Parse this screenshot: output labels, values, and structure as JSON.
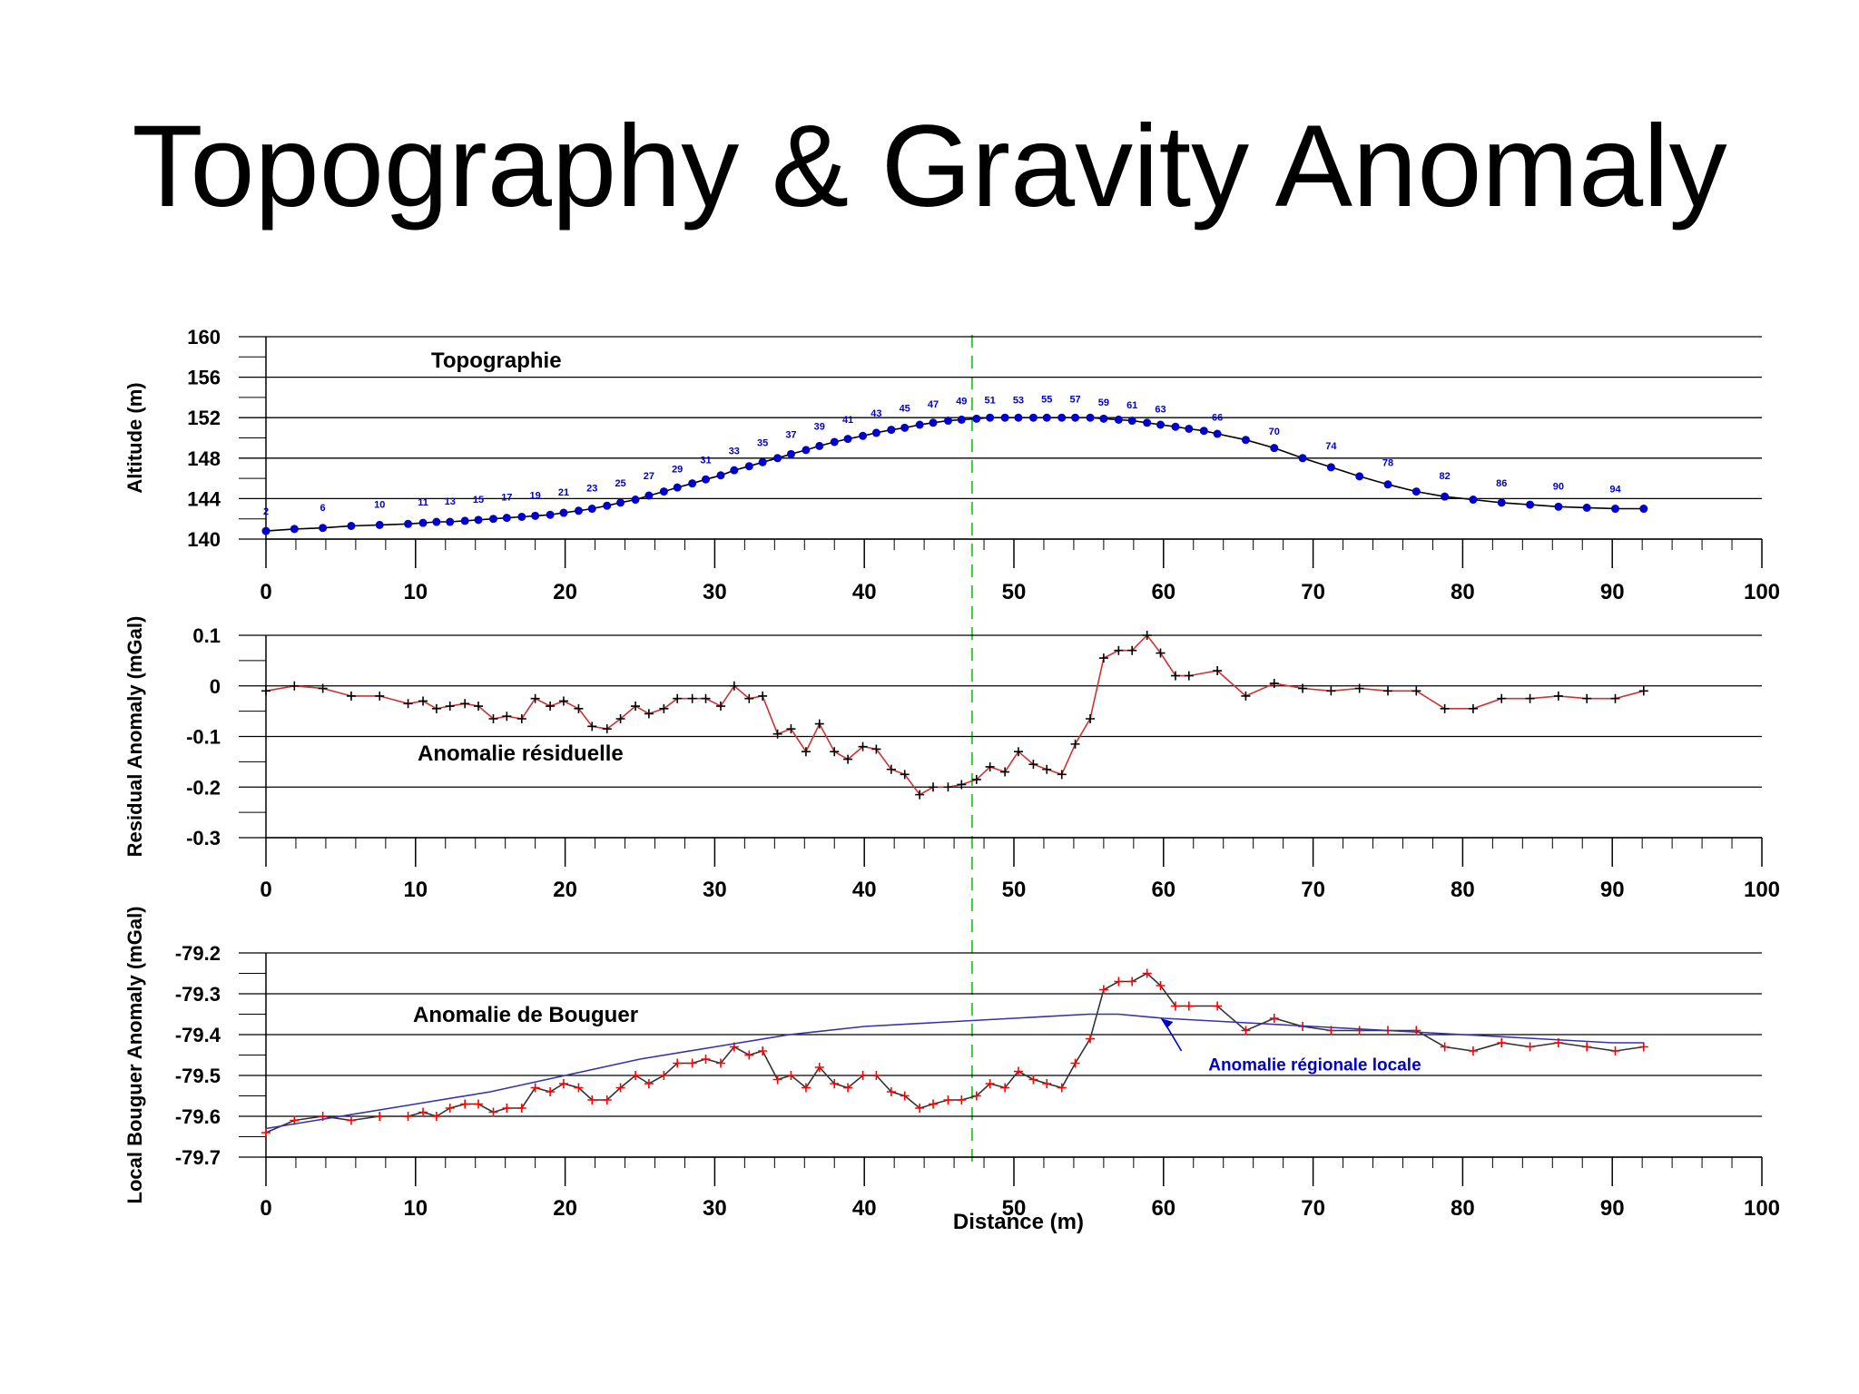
{
  "slide": {
    "title": "Topography & Gravity Anomaly"
  },
  "colors": {
    "topo_line": "#000000",
    "topo_marker": "#0000cc",
    "topo_label": "#0000cc",
    "residual_line": "#cc3333",
    "residual_marker": "#000000",
    "bouguer_line": "#333333",
    "bouguer_marker": "#ff0000",
    "regional_line": "#3333aa",
    "regional_label": "#0000cc",
    "reference_line": "#33cc33",
    "grid": "#000000"
  },
  "reference_line_x": 47.2,
  "chart_data": [
    {
      "type": "line",
      "title": "Topographie",
      "ylabel": "Altitude (m)",
      "xlabel": "",
      "xlim": [
        0,
        100
      ],
      "ylim": [
        140,
        160
      ],
      "x_ticks": [
        0,
        10,
        20,
        30,
        40,
        50,
        60,
        70,
        80,
        90,
        100
      ],
      "y_ticks": [
        140,
        144,
        148,
        152,
        156,
        160
      ],
      "x_tick_labels": [
        "0",
        "10",
        "20",
        "30",
        "40",
        "50",
        "60",
        "70",
        "80",
        "90",
        "100"
      ],
      "y_tick_labels": [
        "140",
        "144",
        "148",
        "152",
        "156",
        "160"
      ],
      "grid": true,
      "series": [
        {
          "marker": "dot",
          "x": [
            0,
            1.9,
            3.8,
            5.7,
            7.6,
            9.5,
            10.5,
            11.4,
            12.3,
            13.3,
            14.2,
            15.2,
            16.1,
            17.1,
            18.0,
            19.0,
            19.9,
            20.9,
            21.8,
            22.8,
            23.7,
            24.7,
            25.6,
            26.6,
            27.5,
            28.5,
            29.4,
            30.4,
            31.3,
            32.3,
            33.2,
            34.2,
            35.1,
            36.1,
            37.0,
            38.0,
            38.9,
            39.9,
            40.8,
            41.8,
            42.7,
            43.7,
            44.6,
            45.6,
            46.5,
            47.5,
            48.4,
            49.4,
            50.3,
            51.3,
            52.2,
            53.2,
            54.1,
            55.1,
            56.0,
            57.0,
            57.9,
            58.9,
            59.8,
            60.8,
            61.7,
            62.7,
            63.6,
            65.5,
            67.4,
            69.3,
            71.2,
            73.1,
            75.0,
            76.9,
            78.8,
            80.7,
            82.6,
            84.5,
            86.4,
            88.3,
            90.2,
            92.1
          ],
          "values": [
            140.8,
            141.0,
            141.1,
            141.3,
            141.4,
            141.5,
            141.6,
            141.7,
            141.7,
            141.8,
            141.9,
            142.0,
            142.1,
            142.2,
            142.3,
            142.4,
            142.6,
            142.8,
            143.0,
            143.3,
            143.6,
            143.9,
            144.3,
            144.7,
            145.1,
            145.5,
            145.9,
            146.3,
            146.8,
            147.2,
            147.6,
            148.0,
            148.4,
            148.8,
            149.2,
            149.6,
            149.9,
            150.2,
            150.5,
            150.8,
            151.0,
            151.3,
            151.5,
            151.7,
            151.8,
            151.9,
            152.0,
            152.0,
            152.0,
            152.0,
            152.0,
            152.0,
            152.0,
            152.0,
            151.9,
            151.8,
            151.7,
            151.5,
            151.3,
            151.1,
            150.9,
            150.7,
            150.4,
            149.8,
            149.0,
            148.0,
            147.1,
            146.2,
            145.4,
            144.7,
            144.2,
            143.9,
            143.6,
            143.4,
            143.2,
            143.1,
            143.0,
            143.0
          ],
          "point_labels": [
            {
              "x": 0,
              "y": 142.4,
              "text": "2"
            },
            {
              "x": 3.8,
              "y": 142.8,
              "text": "6"
            },
            {
              "x": 7.6,
              "y": 143.1,
              "text": "10"
            },
            {
              "x": 10.5,
              "y": 143.3,
              "text": "11"
            },
            {
              "x": 12.3,
              "y": 143.4,
              "text": "13"
            },
            {
              "x": 14.2,
              "y": 143.6,
              "text": "15"
            },
            {
              "x": 16.1,
              "y": 143.8,
              "text": "17"
            },
            {
              "x": 18.0,
              "y": 144.0,
              "text": "19"
            },
            {
              "x": 19.9,
              "y": 144.3,
              "text": "21"
            },
            {
              "x": 21.8,
              "y": 144.7,
              "text": "23"
            },
            {
              "x": 23.7,
              "y": 145.2,
              "text": "25"
            },
            {
              "x": 25.6,
              "y": 145.9,
              "text": "27"
            },
            {
              "x": 27.5,
              "y": 146.6,
              "text": "29"
            },
            {
              "x": 29.4,
              "y": 147.5,
              "text": "31"
            },
            {
              "x": 31.3,
              "y": 148.4,
              "text": "33"
            },
            {
              "x": 33.2,
              "y": 149.2,
              "text": "35"
            },
            {
              "x": 35.1,
              "y": 150.0,
              "text": "37"
            },
            {
              "x": 37.0,
              "y": 150.8,
              "text": "39"
            },
            {
              "x": 38.9,
              "y": 151.5,
              "text": "41"
            },
            {
              "x": 40.8,
              "y": 152.1,
              "text": "43"
            },
            {
              "x": 42.7,
              "y": 152.6,
              "text": "45"
            },
            {
              "x": 44.6,
              "y": 153.0,
              "text": "47"
            },
            {
              "x": 46.5,
              "y": 153.3,
              "text": "49"
            },
            {
              "x": 48.4,
              "y": 153.4,
              "text": "51"
            },
            {
              "x": 50.3,
              "y": 153.4,
              "text": "53"
            },
            {
              "x": 52.2,
              "y": 153.5,
              "text": "55"
            },
            {
              "x": 54.1,
              "y": 153.5,
              "text": "57"
            },
            {
              "x": 56.0,
              "y": 153.2,
              "text": "59"
            },
            {
              "x": 57.9,
              "y": 152.9,
              "text": "61"
            },
            {
              "x": 59.8,
              "y": 152.5,
              "text": "63"
            },
            {
              "x": 63.6,
              "y": 151.7,
              "text": "66"
            },
            {
              "x": 67.4,
              "y": 150.3,
              "text": "70"
            },
            {
              "x": 71.2,
              "y": 148.9,
              "text": "74"
            },
            {
              "x": 75.0,
              "y": 147.2,
              "text": "78"
            },
            {
              "x": 78.8,
              "y": 145.9,
              "text": "82"
            },
            {
              "x": 82.6,
              "y": 145.2,
              "text": "86"
            },
            {
              "x": 86.4,
              "y": 144.9,
              "text": "90"
            },
            {
              "x": 90.2,
              "y": 144.6,
              "text": "94"
            }
          ]
        }
      ]
    },
    {
      "type": "line",
      "title": "Anomalie résiduelle",
      "ylabel": "Residual Anomaly (mGal)",
      "xlabel": "",
      "xlim": [
        0,
        100
      ],
      "ylim": [
        -0.3,
        0.1
      ],
      "x_ticks": [
        0,
        10,
        20,
        30,
        40,
        50,
        60,
        70,
        80,
        90,
        100
      ],
      "y_ticks": [
        -0.3,
        -0.2,
        -0.1,
        0,
        0.1
      ],
      "x_tick_labels": [
        "0",
        "10",
        "20",
        "30",
        "40",
        "50",
        "60",
        "70",
        "80",
        "90",
        "100"
      ],
      "y_tick_labels": [
        "-0.3",
        "-0.2",
        "-0.1",
        "0",
        "0.1"
      ],
      "grid": true,
      "series": [
        {
          "marker": "plus",
          "x": [
            0,
            1.9,
            3.8,
            5.7,
            7.6,
            9.5,
            10.5,
            11.4,
            12.3,
            13.3,
            14.2,
            15.2,
            16.1,
            17.1,
            18.0,
            19.0,
            19.9,
            20.9,
            21.8,
            22.8,
            23.7,
            24.7,
            25.6,
            26.6,
            27.5,
            28.5,
            29.4,
            30.4,
            31.3,
            32.3,
            33.2,
            34.2,
            35.1,
            36.1,
            37.0,
            38.0,
            38.9,
            39.9,
            40.8,
            41.8,
            42.7,
            43.7,
            44.6,
            45.6,
            46.5,
            47.5,
            48.4,
            49.4,
            50.3,
            51.3,
            52.2,
            53.2,
            54.1,
            55.1,
            56.0,
            57.0,
            57.9,
            58.9,
            59.8,
            60.8,
            61.7,
            63.6,
            65.5,
            67.4,
            69.3,
            71.2,
            73.1,
            75.0,
            76.9,
            78.8,
            80.7,
            82.6,
            84.5,
            86.4,
            88.3,
            90.2,
            92.1
          ],
          "values": [
            -0.01,
            0.0,
            -0.005,
            -0.02,
            -0.02,
            -0.035,
            -0.03,
            -0.045,
            -0.04,
            -0.035,
            -0.04,
            -0.065,
            -0.06,
            -0.065,
            -0.025,
            -0.04,
            -0.03,
            -0.045,
            -0.08,
            -0.085,
            -0.065,
            -0.04,
            -0.055,
            -0.045,
            -0.025,
            -0.025,
            -0.025,
            -0.04,
            0.0,
            -0.025,
            -0.02,
            -0.095,
            -0.085,
            -0.13,
            -0.075,
            -0.13,
            -0.145,
            -0.12,
            -0.125,
            -0.165,
            -0.175,
            -0.215,
            -0.2,
            -0.2,
            -0.195,
            -0.185,
            -0.16,
            -0.17,
            -0.13,
            -0.155,
            -0.165,
            -0.175,
            -0.115,
            -0.065,
            0.055,
            0.07,
            0.07,
            0.1,
            0.065,
            0.02,
            0.02,
            0.03,
            -0.02,
            0.005,
            -0.005,
            -0.01,
            -0.005,
            -0.01,
            -0.01,
            -0.045,
            -0.045,
            -0.025,
            -0.025,
            -0.02,
            -0.025,
            -0.025,
            -0.01
          ]
        }
      ]
    },
    {
      "type": "line",
      "title": "Anomalie de Bouguer",
      "ylabel": "Local Bouguer Anomaly (mGal)",
      "xlabel": "Distance (m)",
      "xlim": [
        0,
        100
      ],
      "ylim": [
        -79.7,
        -79.2
      ],
      "x_ticks": [
        0,
        10,
        20,
        30,
        40,
        50,
        60,
        70,
        80,
        90,
        100
      ],
      "y_ticks": [
        -79.7,
        -79.6,
        -79.5,
        -79.4,
        -79.3,
        -79.2
      ],
      "x_tick_labels": [
        "0",
        "10",
        "20",
        "30",
        "40",
        "50",
        "60",
        "70",
        "80",
        "90",
        "100"
      ],
      "y_tick_labels": [
        "-79.7",
        "-79.6",
        "-79.5",
        "-79.4",
        "-79.3",
        "-79.2"
      ],
      "grid": true,
      "annotation": {
        "text": "Anomalie régionale locale",
        "arrow_to_x": 59.8,
        "arrow_to_y": -79.36,
        "text_x": 63.0,
        "text_y": -79.47
      },
      "series": [
        {
          "name": "Anomalie de Bouguer",
          "marker": "plus",
          "x": [
            0,
            1.9,
            3.8,
            5.7,
            7.6,
            9.5,
            10.5,
            11.4,
            12.3,
            13.3,
            14.2,
            15.2,
            16.1,
            17.1,
            18.0,
            19.0,
            19.9,
            20.9,
            21.8,
            22.8,
            23.7,
            24.7,
            25.6,
            26.6,
            27.5,
            28.5,
            29.4,
            30.4,
            31.3,
            32.3,
            33.2,
            34.2,
            35.1,
            36.1,
            37.0,
            38.0,
            38.9,
            39.9,
            40.8,
            41.8,
            42.7,
            43.7,
            44.6,
            45.6,
            46.5,
            47.5,
            48.4,
            49.4,
            50.3,
            51.3,
            52.2,
            53.2,
            54.1,
            55.1,
            56.0,
            57.0,
            57.9,
            58.9,
            59.8,
            60.8,
            61.7,
            63.6,
            65.5,
            67.4,
            69.3,
            71.2,
            73.1,
            75.0,
            76.9,
            78.8,
            80.7,
            82.6,
            84.5,
            86.4,
            88.3,
            90.2,
            92.1
          ],
          "values": [
            -79.64,
            -79.61,
            -79.6,
            -79.61,
            -79.6,
            -79.6,
            -79.59,
            -79.6,
            -79.58,
            -79.57,
            -79.57,
            -79.59,
            -79.58,
            -79.58,
            -79.53,
            -79.54,
            -79.52,
            -79.53,
            -79.56,
            -79.56,
            -79.53,
            -79.5,
            -79.52,
            -79.5,
            -79.47,
            -79.47,
            -79.46,
            -79.47,
            -79.43,
            -79.45,
            -79.44,
            -79.51,
            -79.5,
            -79.53,
            -79.48,
            -79.52,
            -79.53,
            -79.5,
            -79.5,
            -79.54,
            -79.55,
            -79.58,
            -79.57,
            -79.56,
            -79.56,
            -79.55,
            -79.52,
            -79.53,
            -79.49,
            -79.51,
            -79.52,
            -79.53,
            -79.47,
            -79.41,
            -79.29,
            -79.27,
            -79.27,
            -79.25,
            -79.28,
            -79.33,
            -79.33,
            -79.33,
            -79.39,
            -79.36,
            -79.38,
            -79.39,
            -79.39,
            -79.39,
            -79.39,
            -79.43,
            -79.44,
            -79.42,
            -79.43,
            -79.42,
            -79.43,
            -79.44,
            -79.43
          ]
        },
        {
          "name": "Anomalie régionale locale",
          "marker": "none",
          "x": [
            0,
            5,
            10,
            15,
            20,
            25,
            30,
            35,
            40,
            45,
            50,
            55,
            57,
            60,
            65,
            70,
            75,
            80,
            85,
            90,
            92.1
          ],
          "values": [
            -79.63,
            -79.6,
            -79.57,
            -79.54,
            -79.5,
            -79.46,
            -79.43,
            -79.4,
            -79.38,
            -79.37,
            -79.36,
            -79.35,
            -79.35,
            -79.36,
            -79.37,
            -79.38,
            -79.39,
            -79.4,
            -79.41,
            -79.42,
            -79.42
          ]
        }
      ]
    }
  ]
}
